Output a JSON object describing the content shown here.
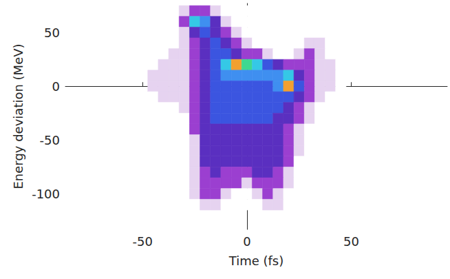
{
  "chart_data": {
    "type": "heatmap",
    "xlabel": "Time (fs)",
    "ylabel": "Energy deviation (MeV)",
    "xlim": [
      -87,
      96
    ],
    "ylim": [
      -133,
      77
    ],
    "xticks": [
      -50,
      0,
      50
    ],
    "yticks": [
      -100,
      -50,
      0,
      50
    ],
    "grid": false,
    "zlim": [
      0,
      10
    ],
    "x": [
      -45,
      -40,
      -35,
      -30,
      -25,
      -20,
      -15,
      -10,
      -5,
      0,
      5,
      10,
      15,
      20,
      25,
      30,
      35,
      40,
      45
    ],
    "y": [
      70,
      60,
      50,
      40,
      30,
      20,
      10,
      0,
      -10,
      -20,
      -30,
      -40,
      -50,
      -60,
      -70,
      -80,
      -90,
      -100,
      -110
    ],
    "z": [
      [
        0,
        0,
        0,
        1,
        2,
        2,
        1,
        0,
        0,
        0,
        0,
        0,
        0,
        0,
        0,
        0,
        0,
        0,
        0
      ],
      [
        0,
        0,
        0,
        2,
        6,
        5,
        3,
        1,
        0,
        0,
        0,
        0,
        0,
        0,
        0,
        0,
        0,
        0,
        0
      ],
      [
        0,
        0,
        0,
        1,
        3,
        4,
        3,
        2,
        1,
        0,
        0,
        0,
        0,
        0,
        0,
        0,
        0,
        0,
        0
      ],
      [
        0,
        0,
        0,
        1,
        2,
        3,
        4,
        3,
        2,
        1,
        0,
        0,
        0,
        0,
        0,
        1,
        1,
        0,
        0
      ],
      [
        0,
        0,
        1,
        1,
        2,
        3,
        4,
        4,
        3,
        2,
        2,
        1,
        0,
        0,
        1,
        2,
        1,
        0,
        0
      ],
      [
        0,
        1,
        1,
        1,
        2,
        3,
        4,
        6,
        9,
        7,
        6,
        4,
        3,
        2,
        2,
        2,
        1,
        1,
        0
      ],
      [
        1,
        1,
        1,
        1,
        2,
        3,
        4,
        5,
        5,
        5,
        5,
        5,
        5,
        6,
        3,
        2,
        1,
        1,
        0
      ],
      [
        1,
        1,
        1,
        1,
        2,
        3,
        4,
        4,
        4,
        4,
        4,
        4,
        5,
        9,
        4,
        2,
        1,
        1,
        0
      ],
      [
        0,
        1,
        1,
        1,
        2,
        3,
        4,
        4,
        4,
        4,
        4,
        4,
        4,
        4,
        3,
        2,
        1,
        0,
        0
      ],
      [
        0,
        0,
        0,
        1,
        2,
        3,
        4,
        4,
        4,
        4,
        4,
        4,
        4,
        3,
        2,
        1,
        0,
        0,
        0
      ],
      [
        0,
        0,
        0,
        0,
        2,
        3,
        4,
        4,
        4,
        4,
        4,
        4,
        3,
        3,
        2,
        1,
        0,
        0,
        0
      ],
      [
        0,
        0,
        0,
        0,
        2,
        3,
        3,
        3,
        3,
        3,
        3,
        3,
        3,
        2,
        1,
        0,
        0,
        0,
        0
      ],
      [
        0,
        0,
        0,
        0,
        1,
        3,
        3,
        3,
        3,
        3,
        3,
        3,
        3,
        2,
        1,
        0,
        0,
        0,
        0
      ],
      [
        0,
        0,
        0,
        0,
        1,
        3,
        3,
        3,
        3,
        3,
        3,
        3,
        3,
        2,
        1,
        0,
        0,
        0,
        0
      ],
      [
        0,
        0,
        0,
        0,
        1,
        3,
        3,
        3,
        3,
        3,
        3,
        3,
        3,
        2,
        0,
        0,
        0,
        0,
        0
      ],
      [
        0,
        0,
        0,
        0,
        1,
        2,
        3,
        2,
        2,
        2,
        3,
        3,
        2,
        1,
        0,
        0,
        0,
        0,
        0
      ],
      [
        0,
        0,
        0,
        0,
        1,
        2,
        2,
        2,
        2,
        1,
        2,
        2,
        2,
        1,
        0,
        0,
        0,
        0,
        0
      ],
      [
        0,
        0,
        0,
        0,
        1,
        2,
        2,
        1,
        0,
        0,
        1,
        2,
        1,
        0,
        0,
        0,
        0,
        0,
        0
      ],
      [
        0,
        0,
        0,
        0,
        0,
        1,
        1,
        0,
        0,
        0,
        0,
        1,
        1,
        0,
        0,
        0,
        0,
        0,
        0
      ]
    ]
  }
}
